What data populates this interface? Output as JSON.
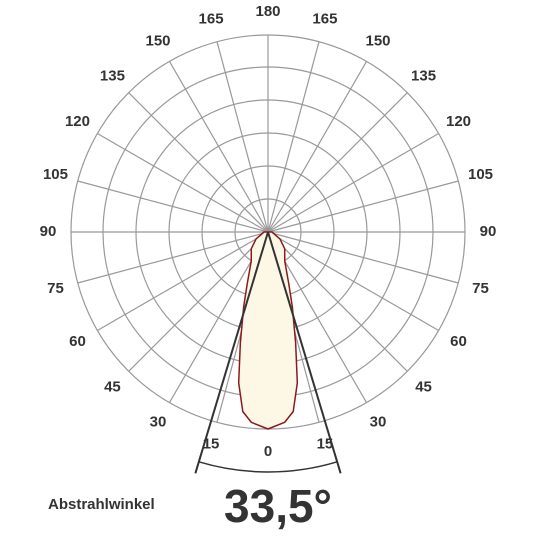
{
  "chart_data": {
    "type": "polar",
    "xticks": [
      0,
      15,
      30,
      45,
      60,
      75,
      90,
      105,
      120,
      135,
      150,
      165,
      180
    ],
    "x": [
      -90,
      -60,
      -45,
      -30,
      -22,
      -18,
      -14,
      -11,
      -8,
      -5,
      0,
      5,
      8,
      11,
      14,
      18,
      22,
      30,
      45,
      60,
      90
    ],
    "values": [
      0.02,
      0.07,
      0.12,
      0.17,
      0.28,
      0.4,
      0.58,
      0.78,
      0.92,
      0.97,
      1.0,
      0.97,
      0.92,
      0.78,
      0.58,
      0.4,
      0.28,
      0.17,
      0.12,
      0.07,
      0.02
    ],
    "ylim": [
      0,
      1
    ],
    "color": "#8b1a1a",
    "fill": "#fdf8e6",
    "beam_angle": {
      "value": 33.5,
      "label": "33,5°"
    },
    "beam_label": "Abstrahlwinkel"
  }
}
